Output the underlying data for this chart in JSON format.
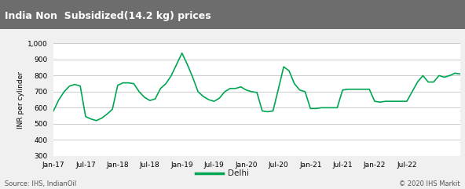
{
  "title": "India Non  Subsidized(14.2 kg) prices",
  "ylabel": "INR per cylinder",
  "source_left": "Source: IHS, IndianOil",
  "source_right": "© 2020 IHS Markit",
  "legend_label": "Delhi",
  "line_color": "#00a651",
  "title_bg_color": "#6d6d6d",
  "title_text_color": "#ffffff",
  "plot_bg_color": "#ffffff",
  "outer_bg_color": "#f0f0f0",
  "grid_color": "#cccccc",
  "ylim": [
    300,
    1000
  ],
  "yticks": [
    300,
    400,
    500,
    600,
    700,
    800,
    900,
    1000
  ],
  "values": [
    580,
    650,
    700,
    735,
    745,
    735,
    545,
    530,
    520,
    535,
    560,
    590,
    740,
    755,
    755,
    750,
    700,
    665,
    645,
    655,
    720,
    750,
    800,
    870,
    940,
    870,
    790,
    700,
    670,
    650,
    640,
    660,
    700,
    720,
    720,
    730,
    710,
    700,
    695,
    580,
    575,
    580,
    715,
    855,
    830,
    750,
    710,
    700,
    595,
    595,
    600,
    600,
    600,
    600,
    710,
    715,
    715,
    715,
    715,
    715,
    640,
    635,
    640,
    640,
    640,
    640,
    640,
    700,
    760,
    800,
    760,
    760,
    800,
    790,
    800,
    815,
    810
  ],
  "xtick_labels": [
    "Jan-17",
    "Jul-17",
    "Jan-18",
    "Jul-18",
    "Jan-19",
    "Jul-19",
    "Jan-20",
    "Jul-20",
    "Jan-21",
    "Jul-21",
    "Jan-22",
    "Jul-22"
  ],
  "xtick_positions": [
    0,
    6,
    12,
    18,
    24,
    30,
    36,
    42,
    48,
    54,
    60,
    66
  ]
}
